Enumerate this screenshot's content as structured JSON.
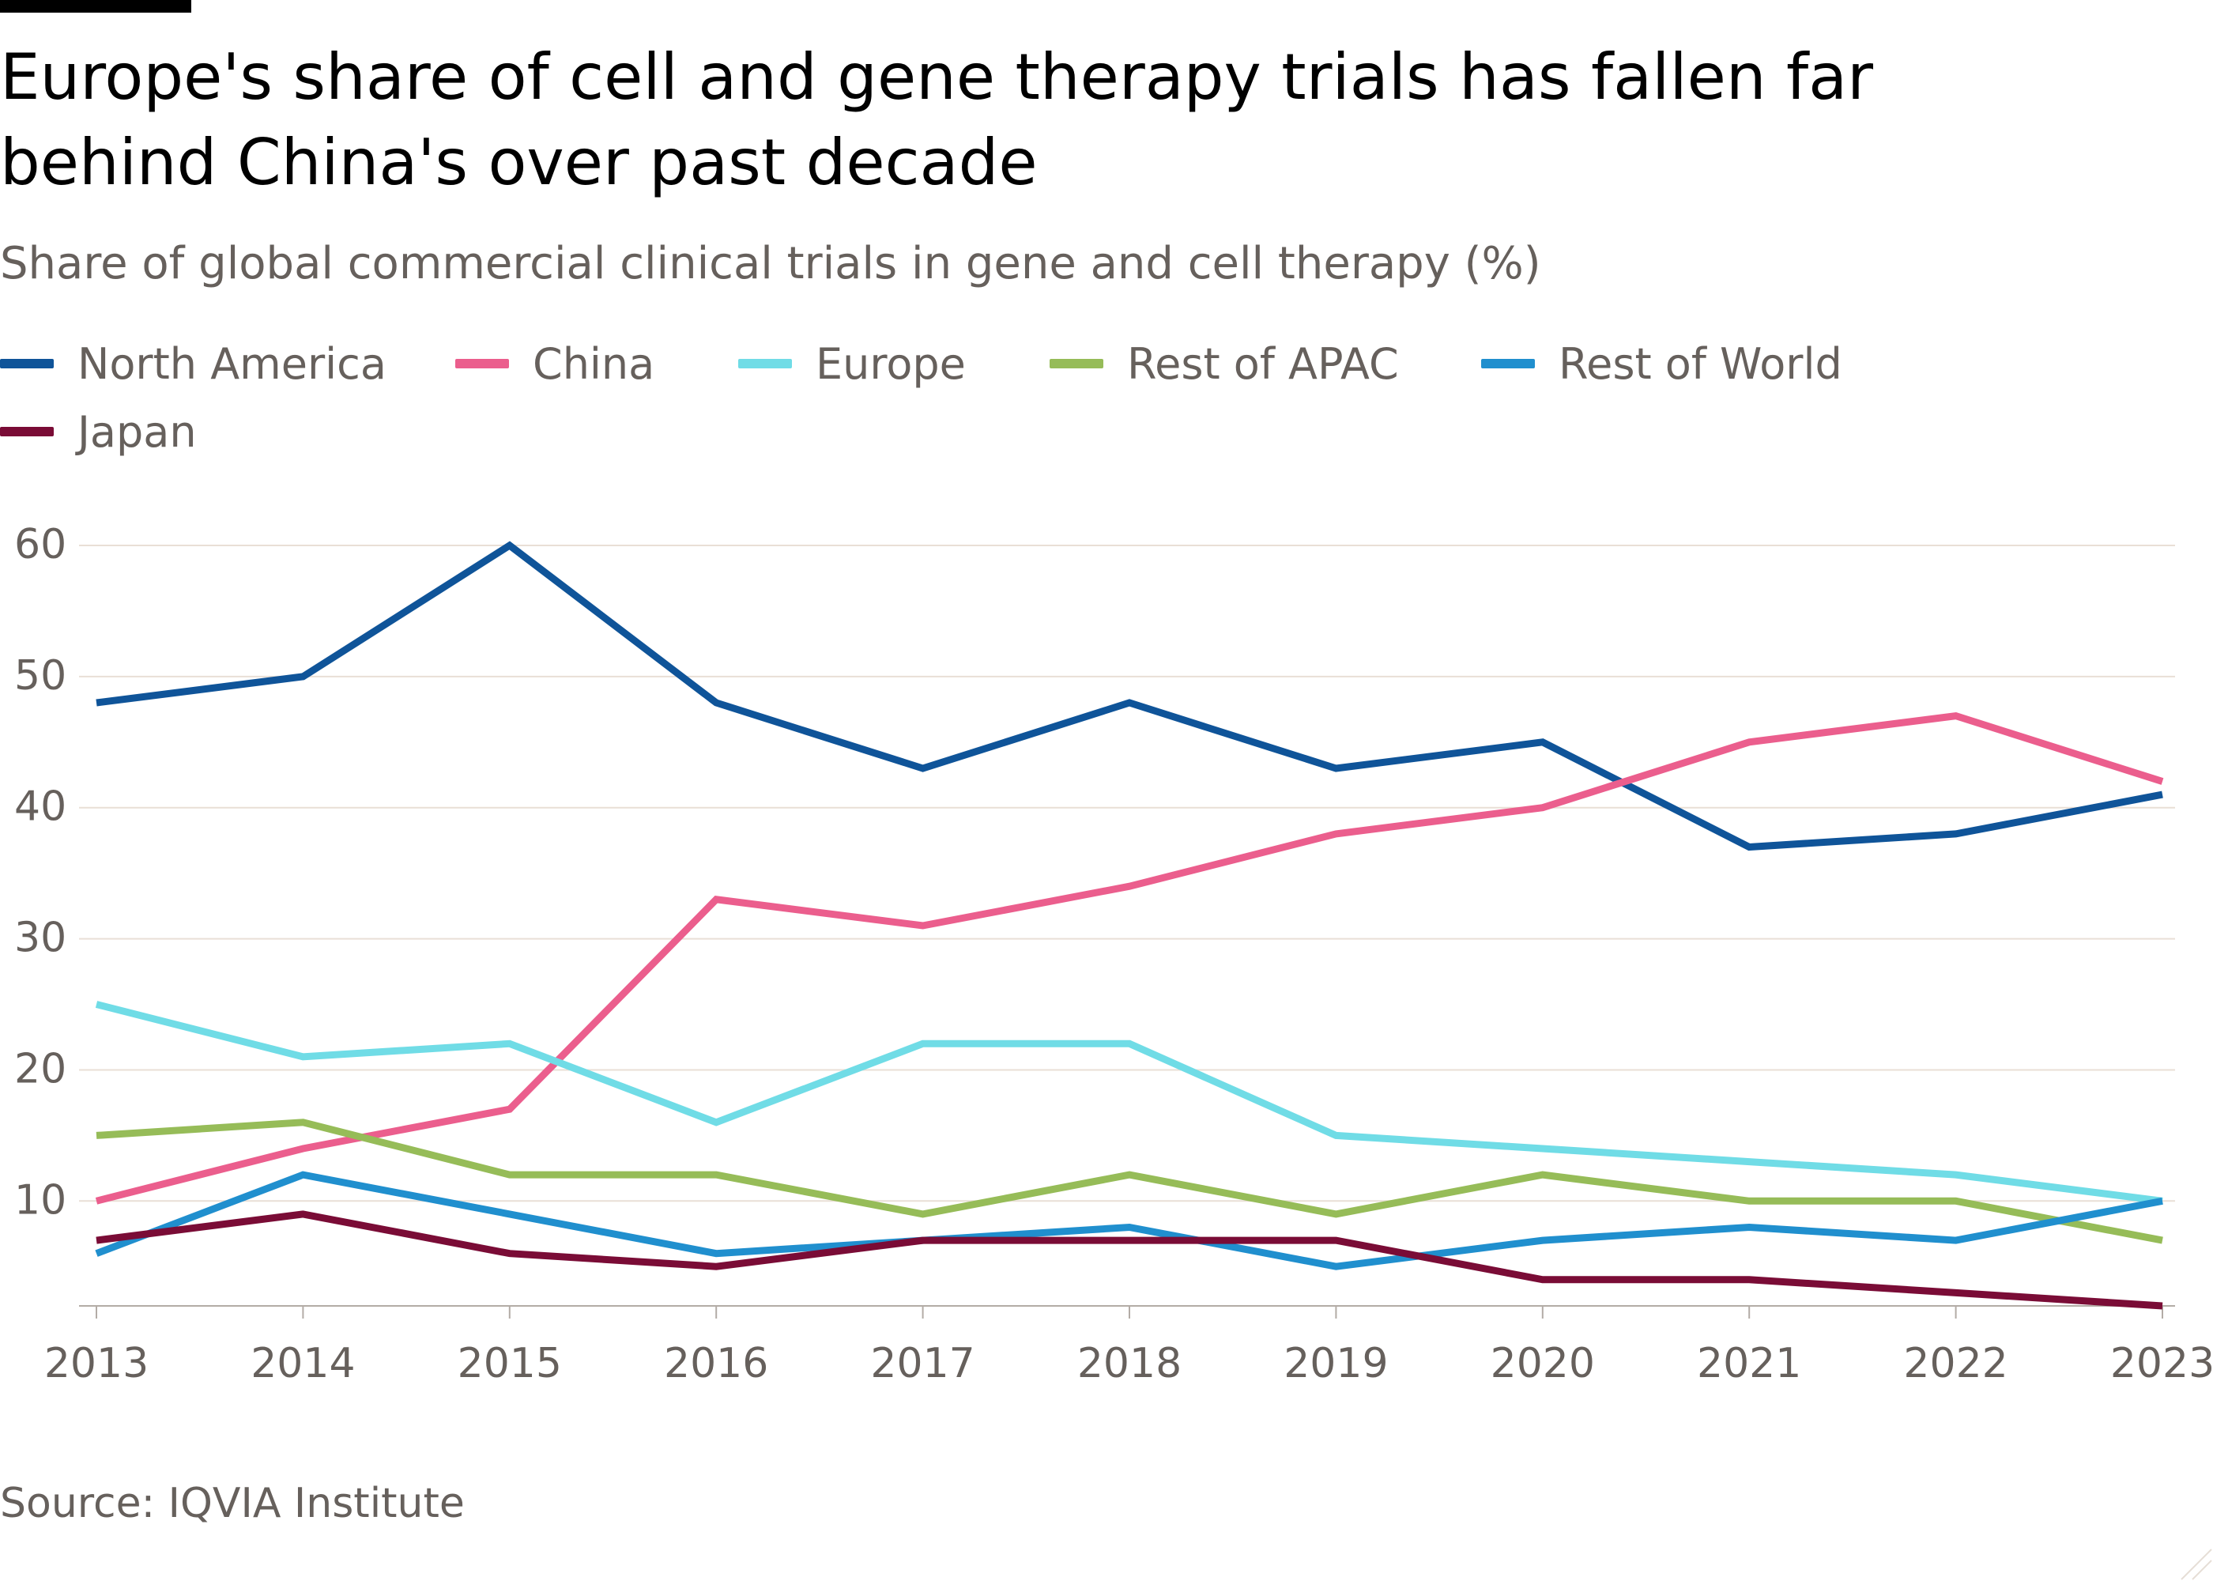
{
  "header": {
    "title": "Europe's share of cell and gene therapy trials has fallen far behind China's over past decade",
    "subtitle": "Share of global commercial clinical trials in gene and cell therapy (%)"
  },
  "footer": {
    "source": "Source: IQVIA Institute"
  },
  "colors": {
    "north_america": "#0f5499",
    "china": "#eb5e8d",
    "europe": "#70dce6",
    "rest_of_apac": "#96bc58",
    "rest_of_world": "#208fce",
    "japan": "#7a0c36",
    "grid": "#e9dfd6",
    "axis": "#b3aca6",
    "tick_text": "#66605c"
  },
  "legend": [
    {
      "label": "North America",
      "color": "#0f5499"
    },
    {
      "label": "China",
      "color": "#eb5e8d"
    },
    {
      "label": "Europe",
      "color": "#70dce6"
    },
    {
      "label": "Rest of APAC",
      "color": "#96bc58"
    },
    {
      "label": "Rest of World",
      "color": "#208fce"
    },
    {
      "label": "Japan",
      "color": "#7a0c36"
    }
  ],
  "chart_data": {
    "type": "line",
    "title": "Europe's share of cell and gene therapy trials has fallen far behind China's over past decade",
    "subtitle": "Share of global commercial clinical trials in gene and cell therapy (%)",
    "xlabel": "",
    "ylabel": "",
    "x": [
      "2013",
      "2014",
      "2015",
      "2016",
      "2017",
      "2018",
      "2019",
      "2020",
      "2021",
      "2022",
      "2023"
    ],
    "ylim": [
      2,
      60
    ],
    "yticks": [
      10,
      20,
      30,
      40,
      50,
      60
    ],
    "grid": true,
    "legend_position": "top",
    "series": [
      {
        "name": "North America",
        "color": "#0f5499",
        "values": [
          48,
          50,
          60,
          48,
          43,
          48,
          43,
          45,
          37,
          38,
          41
        ]
      },
      {
        "name": "China",
        "color": "#eb5e8d",
        "values": [
          10,
          14,
          17,
          33,
          31,
          34,
          38,
          40,
          45,
          47,
          42
        ]
      },
      {
        "name": "Europe",
        "color": "#70dce6",
        "values": [
          25,
          21,
          22,
          16,
          22,
          22,
          15,
          14,
          13,
          12,
          10
        ]
      },
      {
        "name": "Rest of APAC",
        "color": "#96bc58",
        "values": [
          15,
          16,
          12,
          12,
          9,
          12,
          9,
          12,
          10,
          10,
          7
        ]
      },
      {
        "name": "Rest of World",
        "color": "#208fce",
        "values": [
          6,
          12,
          9,
          6,
          7,
          8,
          5,
          7,
          8,
          7,
          10
        ]
      },
      {
        "name": "Japan",
        "color": "#7a0c36",
        "values": [
          7,
          9,
          6,
          5,
          7,
          7,
          7,
          4,
          4,
          3,
          2
        ]
      }
    ],
    "source": "Source: IQVIA Institute"
  }
}
